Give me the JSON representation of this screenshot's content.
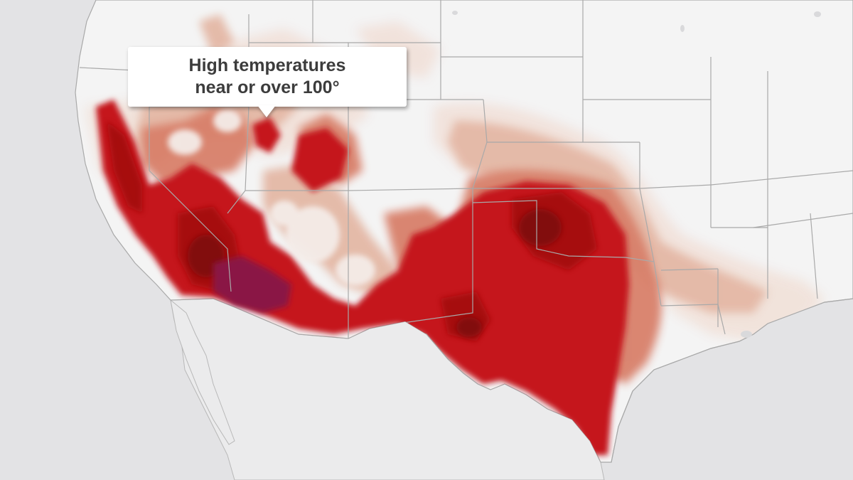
{
  "callout": {
    "line1": "High temperatures",
    "line2": "near or over 100°"
  },
  "map": {
    "region": "Contiguous United States",
    "depicts": "forecast high temperatures",
    "color_scale": {
      "light": "#f1e2da",
      "pale": "#e4b8a6",
      "salmon": "#d8806a",
      "red": "#c5121a",
      "deep_red": "#a30a10",
      "dark_red": "#7c0710",
      "maroon": "#8a1245"
    },
    "land_color": "#f4f4f4",
    "ocean_color": "#e3e3e5",
    "border_color": "#a9a9a9"
  }
}
